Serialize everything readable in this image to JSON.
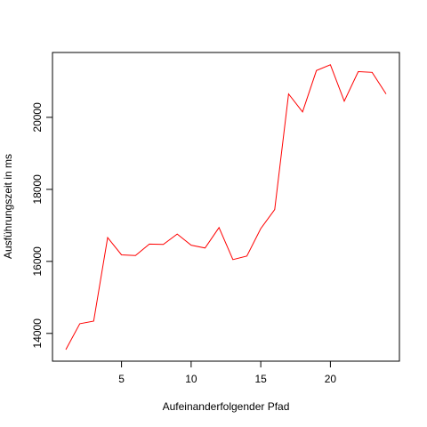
{
  "chart_data": {
    "type": "line",
    "title": "",
    "xlabel": "Aufeinanderfolgender Pfad",
    "ylabel": "Ausführungszeit in ms",
    "xlim": [
      1,
      24
    ],
    "ylim": [
      13550,
      21480
    ],
    "x_ticks": [
      5,
      10,
      15,
      20
    ],
    "y_ticks": [
      14000,
      16000,
      18000,
      20000
    ],
    "grid": false,
    "legend": "none",
    "series": [
      {
        "color": "#ff0000",
        "x": [
          1,
          2,
          3,
          4,
          5,
          6,
          7,
          8,
          9,
          10,
          11,
          12,
          13,
          14,
          15,
          16,
          17,
          18,
          19,
          20,
          21,
          22,
          23,
          24
        ],
        "values": [
          13550,
          14270,
          14340,
          16660,
          16180,
          16160,
          16480,
          16470,
          16760,
          16450,
          16370,
          16940,
          16050,
          16150,
          16910,
          17440,
          20650,
          20150,
          21300,
          21460,
          20450,
          21270,
          21250,
          20650
        ]
      }
    ]
  }
}
